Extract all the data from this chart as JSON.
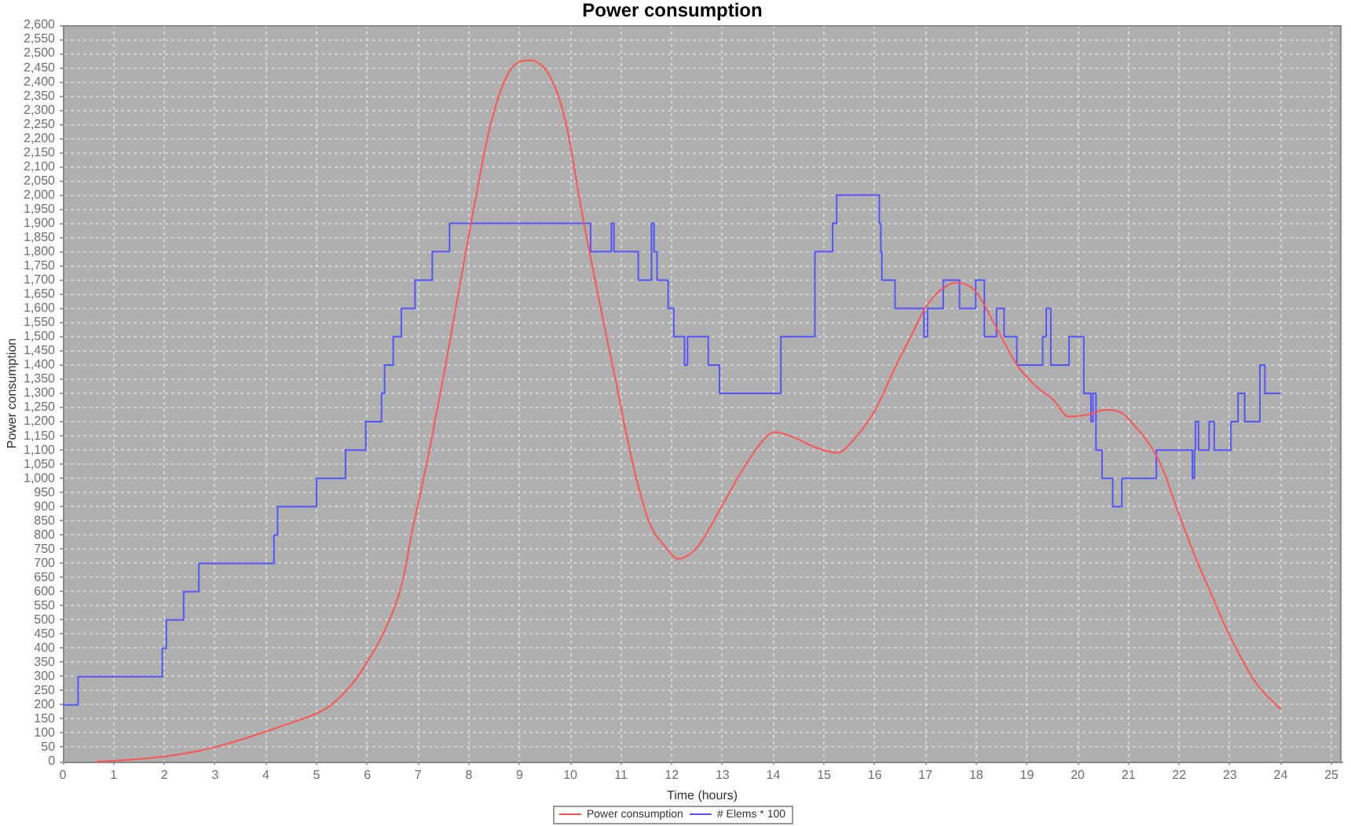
{
  "chart_data": {
    "type": "line",
    "title": "Power consumption",
    "xlabel": "Time (hours)",
    "ylabel": "Power consumption",
    "xlim": [
      0,
      25.2
    ],
    "xticks": [
      0,
      1,
      2,
      3,
      4,
      5,
      6,
      7,
      8,
      9,
      10,
      11,
      12,
      13,
      14,
      15,
      16,
      17,
      18,
      19,
      20,
      21,
      22,
      23,
      24,
      25
    ],
    "ylim": [
      0,
      2600
    ],
    "yticks": [
      0,
      50,
      100,
      150,
      200,
      250,
      300,
      350,
      400,
      450,
      500,
      550,
      600,
      650,
      700,
      750,
      800,
      850,
      900,
      950,
      {
        "value": 1000,
        "label": "1,000"
      },
      {
        "value": 1050,
        "label": "1,050"
      },
      {
        "value": 1100,
        "label": "1,100"
      },
      {
        "value": 1150,
        "label": "1,150"
      },
      {
        "value": 1200,
        "label": "1,200"
      },
      {
        "value": 1250,
        "label": "1,250"
      },
      {
        "value": 1300,
        "label": "1,300"
      },
      {
        "value": 1350,
        "label": "1,350"
      },
      {
        "value": 1400,
        "label": "1,400"
      },
      {
        "value": 1450,
        "label": "1,450"
      },
      {
        "value": 1500,
        "label": "1,500"
      },
      {
        "value": 1550,
        "label": "1,550"
      },
      {
        "value": 1600,
        "label": "1,600"
      },
      {
        "value": 1650,
        "label": "1,650"
      },
      {
        "value": 1700,
        "label": "1,700"
      },
      {
        "value": 1750,
        "label": "1,750"
      },
      {
        "value": 1800,
        "label": "1,800"
      },
      {
        "value": 1850,
        "label": "1,850"
      },
      {
        "value": 1900,
        "label": "1,900"
      },
      {
        "value": 1950,
        "label": "1,950"
      },
      {
        "value": 2000,
        "label": "2,000"
      },
      {
        "value": 2050,
        "label": "2,050"
      },
      {
        "value": 2100,
        "label": "2,100"
      },
      {
        "value": 2150,
        "label": "2,150"
      },
      {
        "value": 2200,
        "label": "2,200"
      },
      {
        "value": 2250,
        "label": "2,250"
      },
      {
        "value": 2300,
        "label": "2,300"
      },
      {
        "value": 2350,
        "label": "2,350"
      },
      {
        "value": 2400,
        "label": "2,400"
      },
      {
        "value": 2450,
        "label": "2,450"
      },
      {
        "value": 2500,
        "label": "2,500"
      },
      {
        "value": 2550,
        "label": "2,550"
      },
      {
        "value": 2600,
        "label": "2,600"
      }
    ],
    "grid": true,
    "legend": "bottom",
    "marker": "none",
    "series": [
      {
        "name": "Power consumption",
        "color": "#ff5555",
        "x": [
          0.67,
          1,
          1.5,
          2,
          2.5,
          3,
          3.5,
          4,
          4.5,
          5,
          5.25,
          5.5,
          5.75,
          6,
          6.25,
          6.5,
          6.7,
          6.88,
          7.05,
          7.24,
          7.55,
          7.86,
          8.12,
          8.43,
          8.79,
          9.2,
          9.61,
          9.92,
          10.21,
          10.6,
          10.9,
          11.1,
          11.32,
          11.57,
          11.88,
          12.12,
          12.5,
          13.02,
          13.43,
          13.89,
          14.05,
          14.4,
          14.77,
          15.27,
          15.6,
          16.01,
          16.42,
          16.73,
          16.99,
          17.3,
          17.61,
          17.97,
          18.28,
          18.55,
          18.81,
          19.15,
          19.51,
          19.82,
          20.2,
          20.55,
          20.85,
          21.16,
          21.47,
          21.68,
          21.99,
          22.3,
          22.61,
          22.92,
          23.23,
          23.54,
          24
        ],
        "values": [
          0,
          3,
          9,
          18,
          32,
          51,
          77,
          106,
          137,
          170,
          195,
          234,
          285,
          353,
          430,
          528,
          640,
          811,
          950,
          1114,
          1407,
          1719,
          1975,
          2250,
          2433,
          2476,
          2415,
          2250,
          1957,
          1600,
          1340,
          1160,
          986,
          839,
          757,
          716,
          757,
          913,
          1041,
          1151,
          1163,
          1145,
          1114,
          1090,
          1140,
          1242,
          1399,
          1508,
          1600,
          1665,
          1691,
          1664,
          1572,
          1480,
          1398,
          1330,
          1279,
          1218,
          1225,
          1242,
          1233,
          1178,
          1105,
          1031,
          876,
          729,
          601,
          473,
          363,
          271,
          185
        ]
      },
      {
        "name": "# Elems * 100",
        "type": "step",
        "color": "#5555ff",
        "x": [
          0,
          0.3,
          1.96,
          2.04,
          2.38,
          2.68,
          4.16,
          4.23,
          5.0,
          5.57,
          5.97,
          6.28,
          6.34,
          6.51,
          6.67,
          6.94,
          7.28,
          7.62,
          10.4,
          10.81,
          10.86,
          11.34,
          11.6,
          11.65,
          11.71,
          11.93,
          12.04,
          12.25,
          12.31,
          12.72,
          12.94,
          14.15,
          14.82,
          15.17,
          15.25,
          16.09,
          16.12,
          16.14,
          16.4,
          16.97,
          17.04,
          17.35,
          17.67,
          17.99,
          18.16,
          18.4,
          18.55,
          18.8,
          19.31,
          19.38,
          19.47,
          19.83,
          20.12,
          20.26,
          20.3,
          20.36,
          20.48,
          20.69,
          20.87,
          21.55,
          22.26,
          22.3,
          22.32,
          22.38,
          22.59,
          22.69,
          23.02,
          23.16,
          23.29,
          23.59,
          23.69,
          24.0
        ],
        "values": [
          200,
          300,
          400,
          500,
          600,
          700,
          800,
          900,
          1000,
          1100,
          1200,
          1300,
          1400,
          1500,
          1600,
          1700,
          1800,
          1900,
          1800,
          1900,
          1800,
          1700,
          1900,
          1800,
          1700,
          1600,
          1500,
          1400,
          1500,
          1400,
          1300,
          1500,
          1800,
          1900,
          2000,
          1900,
          1800,
          1700,
          1600,
          1500,
          1600,
          1700,
          1600,
          1700,
          1500,
          1600,
          1500,
          1400,
          1500,
          1600,
          1400,
          1500,
          1300,
          1200,
          1300,
          1100,
          1000,
          900,
          1000,
          1100,
          1000,
          1100,
          1200,
          1100,
          1200,
          1100,
          1200,
          1300,
          1200,
          1400,
          1300,
          1300
        ]
      }
    ]
  }
}
